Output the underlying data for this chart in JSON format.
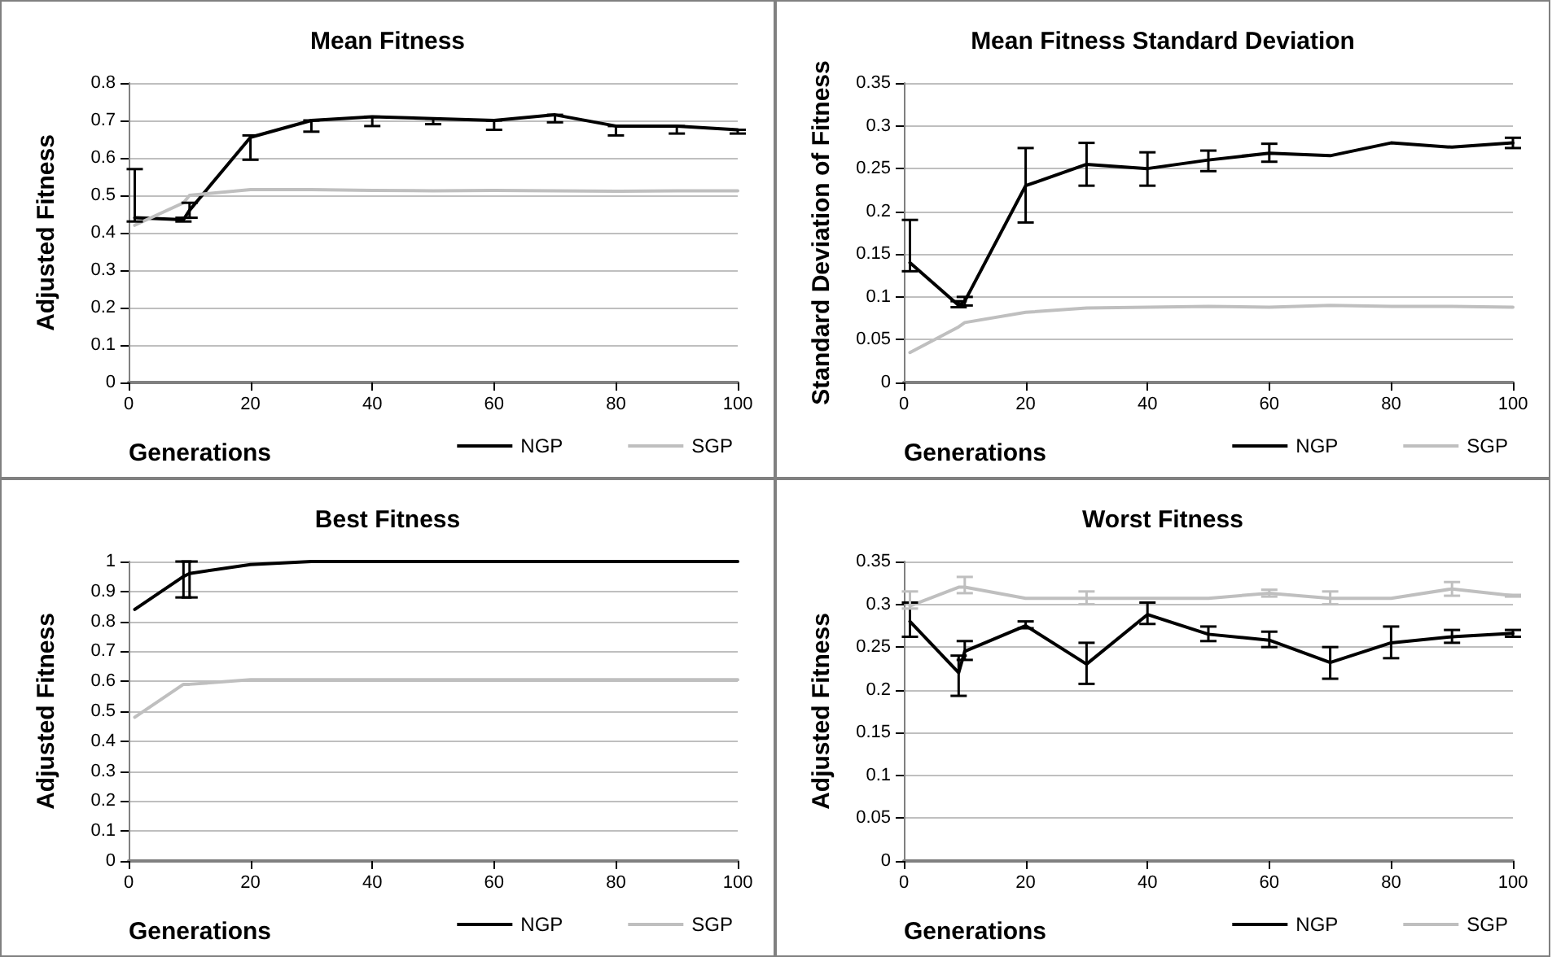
{
  "chart_data": [
    {
      "type": "line",
      "title": "Mean Fitness",
      "xlabel": "Generations",
      "ylabel": "Adjusted Fitness",
      "x": [
        1,
        9,
        10,
        20,
        30,
        40,
        50,
        60,
        70,
        80,
        90,
        100
      ],
      "xlim": [
        0,
        100
      ],
      "xticks": [
        0,
        20,
        40,
        60,
        80,
        100
      ],
      "ylim": [
        0,
        0.8
      ],
      "yticks": [
        0,
        0.1,
        0.2,
        0.3,
        0.4,
        0.5,
        0.6,
        0.7,
        0.8
      ],
      "grid": "y",
      "legend": "bottom right",
      "marker": "none",
      "series": [
        {
          "name": "NGP",
          "color": "#000000",
          "values": [
            0.44,
            0.435,
            0.46,
            0.655,
            0.7,
            0.71,
            0.705,
            0.7,
            0.715,
            0.685,
            0.685,
            0.675
          ],
          "errors": [
            [
              0.43,
              0.57
            ],
            [
              0.43,
              0.44
            ],
            [
              0.44,
              0.48
            ],
            [
              0.595,
              0.66
            ],
            [
              0.67,
              0.7
            ],
            [
              0.685,
              0.71
            ],
            [
              0.69,
              0.705
            ],
            [
              0.675,
              0.7
            ],
            [
              0.695,
              0.715
            ],
            [
              0.66,
              0.685
            ],
            [
              0.665,
              0.685
            ],
            [
              0.665,
              0.675
            ]
          ]
        },
        {
          "name": "SGP",
          "color": "#bfbfbf",
          "values": [
            0.42,
            0.48,
            0.5,
            0.515,
            0.515,
            0.513,
            0.512,
            0.513,
            0.512,
            0.511,
            0.512,
            0.512
          ]
        }
      ]
    },
    {
      "type": "line",
      "title": "Mean Fitness Standard Deviation",
      "xlabel": "Generations",
      "ylabel": "Standard Deviation of Fitness",
      "x": [
        1,
        9,
        10,
        20,
        30,
        40,
        50,
        60,
        70,
        80,
        90,
        100
      ],
      "xlim": [
        0,
        100
      ],
      "xticks": [
        0,
        20,
        40,
        60,
        80,
        100
      ],
      "ylim": [
        0,
        0.35
      ],
      "yticks": [
        0,
        0.05,
        0.1,
        0.15,
        0.2,
        0.25,
        0.3,
        0.35
      ],
      "grid": "y",
      "legend": "bottom right",
      "marker": "none",
      "series": [
        {
          "name": "NGP",
          "color": "#000000",
          "values": [
            0.14,
            0.09,
            0.095,
            0.23,
            0.255,
            0.25,
            0.26,
            0.268,
            0.265,
            0.28,
            0.275,
            0.28
          ],
          "errors": [
            [
              0.13,
              0.19
            ],
            [
              0.088,
              0.095
            ],
            [
              0.09,
              0.1
            ],
            [
              0.187,
              0.274
            ],
            [
              0.23,
              0.28
            ],
            [
              0.23,
              0.269
            ],
            [
              0.247,
              0.271
            ],
            [
              0.258,
              0.279
            ],
            null,
            null,
            null,
            [
              0.274,
              0.286
            ]
          ]
        },
        {
          "name": "SGP",
          "color": "#bfbfbf",
          "values": [
            0.035,
            0.065,
            0.07,
            0.082,
            0.087,
            0.088,
            0.089,
            0.088,
            0.09,
            0.089,
            0.089,
            0.088
          ]
        }
      ]
    },
    {
      "type": "line",
      "title": "Best Fitness",
      "xlabel": "Generations",
      "ylabel": "Adjusted Fitness",
      "x": [
        1,
        9,
        10,
        20,
        30,
        40,
        50,
        60,
        70,
        80,
        90,
        100
      ],
      "xlim": [
        0,
        100
      ],
      "xticks": [
        0,
        20,
        40,
        60,
        80,
        100
      ],
      "ylim": [
        0,
        1
      ],
      "yticks": [
        0,
        0.1,
        0.2,
        0.3,
        0.4,
        0.5,
        0.6,
        0.7,
        0.8,
        0.9,
        1
      ],
      "grid": "y",
      "legend": "bottom right",
      "marker": "none",
      "series": [
        {
          "name": "NGP",
          "color": "#000000",
          "values": [
            0.84,
            0.95,
            0.96,
            0.99,
            1,
            1,
            1,
            1,
            1,
            1,
            1,
            1
          ],
          "errors": [
            null,
            [
              0.88,
              1
            ],
            [
              0.88,
              1
            ],
            null,
            null,
            null,
            null,
            null,
            null,
            null,
            null,
            null
          ]
        },
        {
          "name": "SGP",
          "color": "#bfbfbf",
          "values": [
            0.48,
            0.59,
            0.59,
            0.605,
            0.605,
            0.605,
            0.605,
            0.605,
            0.605,
            0.605,
            0.605,
            0.605
          ]
        }
      ]
    },
    {
      "type": "line",
      "title": "Worst Fitness",
      "xlabel": "Generations",
      "ylabel": "Adjusted Fitness",
      "x": [
        1,
        9,
        10,
        20,
        30,
        40,
        50,
        60,
        70,
        80,
        90,
        100
      ],
      "xlim": [
        0,
        100
      ],
      "xticks": [
        0,
        20,
        40,
        60,
        80,
        100
      ],
      "ylim": [
        0,
        0.35
      ],
      "yticks": [
        0,
        0.05,
        0.1,
        0.15,
        0.2,
        0.25,
        0.3,
        0.35
      ],
      "grid": "y",
      "legend": "bottom right",
      "marker": "none",
      "series": [
        {
          "name": "NGP",
          "color": "#000000",
          "values": [
            0.28,
            0.22,
            0.245,
            0.275,
            0.23,
            0.288,
            0.265,
            0.258,
            0.232,
            0.255,
            0.262,
            0.266
          ],
          "errors": [
            [
              0.262,
              0.302
            ],
            [
              0.193,
              0.24
            ],
            [
              0.235,
              0.257
            ],
            [
              0.272,
              0.28
            ],
            [
              0.207,
              0.255
            ],
            [
              0.277,
              0.302
            ],
            [
              0.257,
              0.274
            ],
            [
              0.25,
              0.268
            ],
            [
              0.213,
              0.25
            ],
            [
              0.237,
              0.274
            ],
            [
              0.255,
              0.27
            ],
            [
              0.262,
              0.27
            ]
          ]
        },
        {
          "name": "SGP",
          "color": "#bfbfbf",
          "values": [
            0.298,
            0.32,
            0.32,
            0.307,
            0.307,
            0.307,
            0.307,
            0.313,
            0.307,
            0.307,
            0.318,
            0.31
          ],
          "errors": [
            [
              0.295,
              0.315
            ],
            null,
            [
              0.313,
              0.332
            ],
            null,
            [
              0.3,
              0.315
            ],
            null,
            null,
            [
              0.309,
              0.317
            ],
            [
              0.3,
              0.315
            ],
            null,
            [
              0.31,
              0.326
            ],
            [
              0.309,
              0.311
            ]
          ]
        }
      ]
    }
  ]
}
